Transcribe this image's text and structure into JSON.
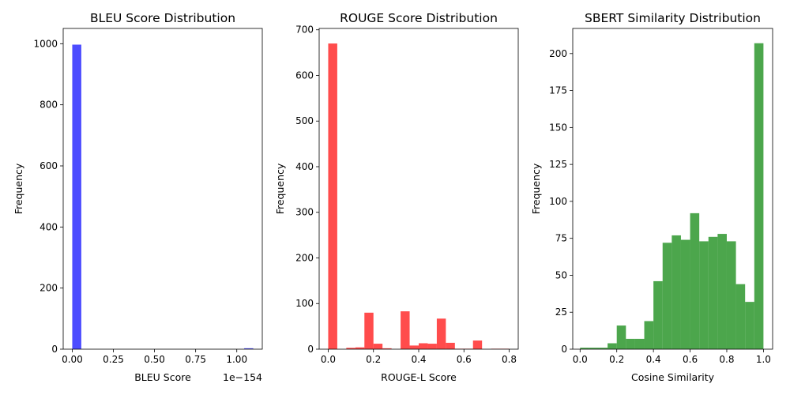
{
  "chart_data": [
    {
      "type": "bar",
      "title": "BLEU Score Distribution",
      "xlabel": "BLEU Score",
      "ylabel": "Frequency",
      "offset_text": "1e−154",
      "xlim": [
        -0.055,
        1.155
      ],
      "ylim": [
        0,
        1050
      ],
      "xticks": [
        0,
        0.25,
        0.5,
        0.75,
        1.0
      ],
      "xtick_labels": [
        "0.00",
        "0.25",
        "0.50",
        "0.75",
        "1.00"
      ],
      "yticks": [
        0,
        200,
        400,
        600,
        800,
        1000
      ],
      "ytick_labels": [
        "0",
        "200",
        "400",
        "600",
        "800",
        "1000"
      ],
      "bin_start": 0.0,
      "bin_width": 0.055,
      "values": [
        997,
        0,
        0,
        0,
        0,
        0,
        0,
        0,
        0,
        0,
        0,
        0,
        0,
        0,
        0,
        0,
        0,
        0,
        0,
        3
      ],
      "color": "#0000ff",
      "opacity": 0.7,
      "grid": false
    },
    {
      "type": "bar",
      "title": "ROUGE Score Distribution",
      "xlabel": "ROUGE-L Score",
      "ylabel": "Frequency",
      "xlim": [
        -0.04,
        0.84
      ],
      "ylim": [
        0,
        703
      ],
      "xticks": [
        0,
        0.2,
        0.4,
        0.6,
        0.8
      ],
      "xtick_labels": [
        "0.0",
        "0.2",
        "0.4",
        "0.6",
        "0.8"
      ],
      "yticks": [
        0,
        100,
        200,
        300,
        400,
        500,
        600,
        700
      ],
      "ytick_labels": [
        "0",
        "100",
        "200",
        "300",
        "400",
        "500",
        "600",
        "700"
      ],
      "bin_start": 0.0,
      "bin_width": 0.04,
      "values": [
        670,
        0,
        3,
        4,
        80,
        12,
        2,
        0,
        83,
        8,
        13,
        12,
        67,
        14,
        1,
        1,
        19,
        0,
        1,
        1
      ],
      "color": "#ff0000",
      "opacity": 0.7,
      "grid": false
    },
    {
      "type": "bar",
      "title": "SBERT Similarity Distribution",
      "xlabel": "Cosine Similarity",
      "ylabel": "Frequency",
      "xlim": [
        -0.04,
        1.05
      ],
      "ylim": [
        0,
        217
      ],
      "xticks": [
        0,
        0.2,
        0.4,
        0.6,
        0.8,
        1.0
      ],
      "xtick_labels": [
        "0.0",
        "0.2",
        "0.4",
        "0.6",
        "0.8",
        "1.0"
      ],
      "yticks": [
        0,
        25,
        50,
        75,
        100,
        125,
        150,
        175,
        200
      ],
      "ytick_labels": [
        "0",
        "25",
        "50",
        "75",
        "100",
        "125",
        "150",
        "175",
        "200"
      ],
      "bin_start": 0.0,
      "bin_width": 0.05,
      "values": [
        1,
        1,
        1,
        4,
        16,
        7,
        7,
        19,
        46,
        72,
        77,
        74,
        92,
        73,
        76,
        78,
        73,
        44,
        32,
        207
      ],
      "color": "#008000",
      "opacity": 0.7,
      "grid": false
    }
  ]
}
